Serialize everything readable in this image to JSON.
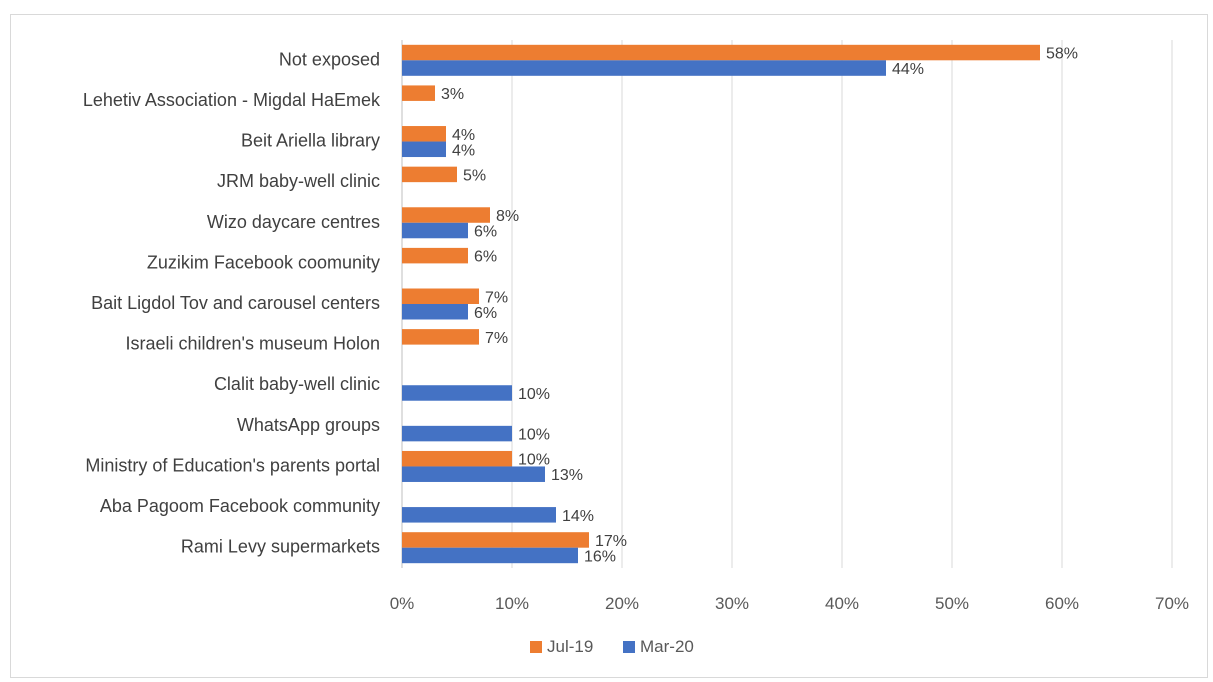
{
  "chart_data": {
    "type": "bar",
    "orientation": "horizontal",
    "categories": [
      "Not exposed",
      "Lehetiv Association - Migdal HaEmek",
      "Beit Ariella library",
      "JRM baby-well clinic",
      "Wizo daycare centres",
      "Zuzikim Facebook coomunity",
      "Bait Ligdol Tov and carousel centers",
      "Israeli children's museum Holon",
      "Clalit baby-well clinic",
      "WhatsApp groups",
      "Ministry of Education's parents portal",
      "Aba Pagoom Facebook community",
      "Rami Levy supermarkets"
    ],
    "series": [
      {
        "name": "Jul-19",
        "color": "#ed7d31",
        "values": [
          58,
          3,
          4,
          5,
          8,
          6,
          7,
          7,
          null,
          null,
          10,
          null,
          17
        ],
        "labels": [
          "58%",
          "3%",
          "4%",
          "5%",
          "8%",
          "6%",
          "7%",
          "7%",
          null,
          null,
          "10%",
          null,
          "17%"
        ]
      },
      {
        "name": "Mar-20",
        "color": "#4472c4",
        "values": [
          44,
          null,
          4,
          null,
          6,
          null,
          6,
          null,
          10,
          10,
          13,
          14,
          16
        ],
        "labels": [
          "44%",
          null,
          "4%",
          null,
          "6%",
          null,
          "6%",
          null,
          "10%",
          "10%",
          "13%",
          "14%",
          "16%"
        ]
      }
    ],
    "xlim": [
      0,
      70
    ],
    "x_ticks": [
      "0%",
      "10%",
      "20%",
      "30%",
      "40%",
      "50%",
      "60%",
      "70%"
    ],
    "grid": true,
    "legend_position": "bottom"
  }
}
